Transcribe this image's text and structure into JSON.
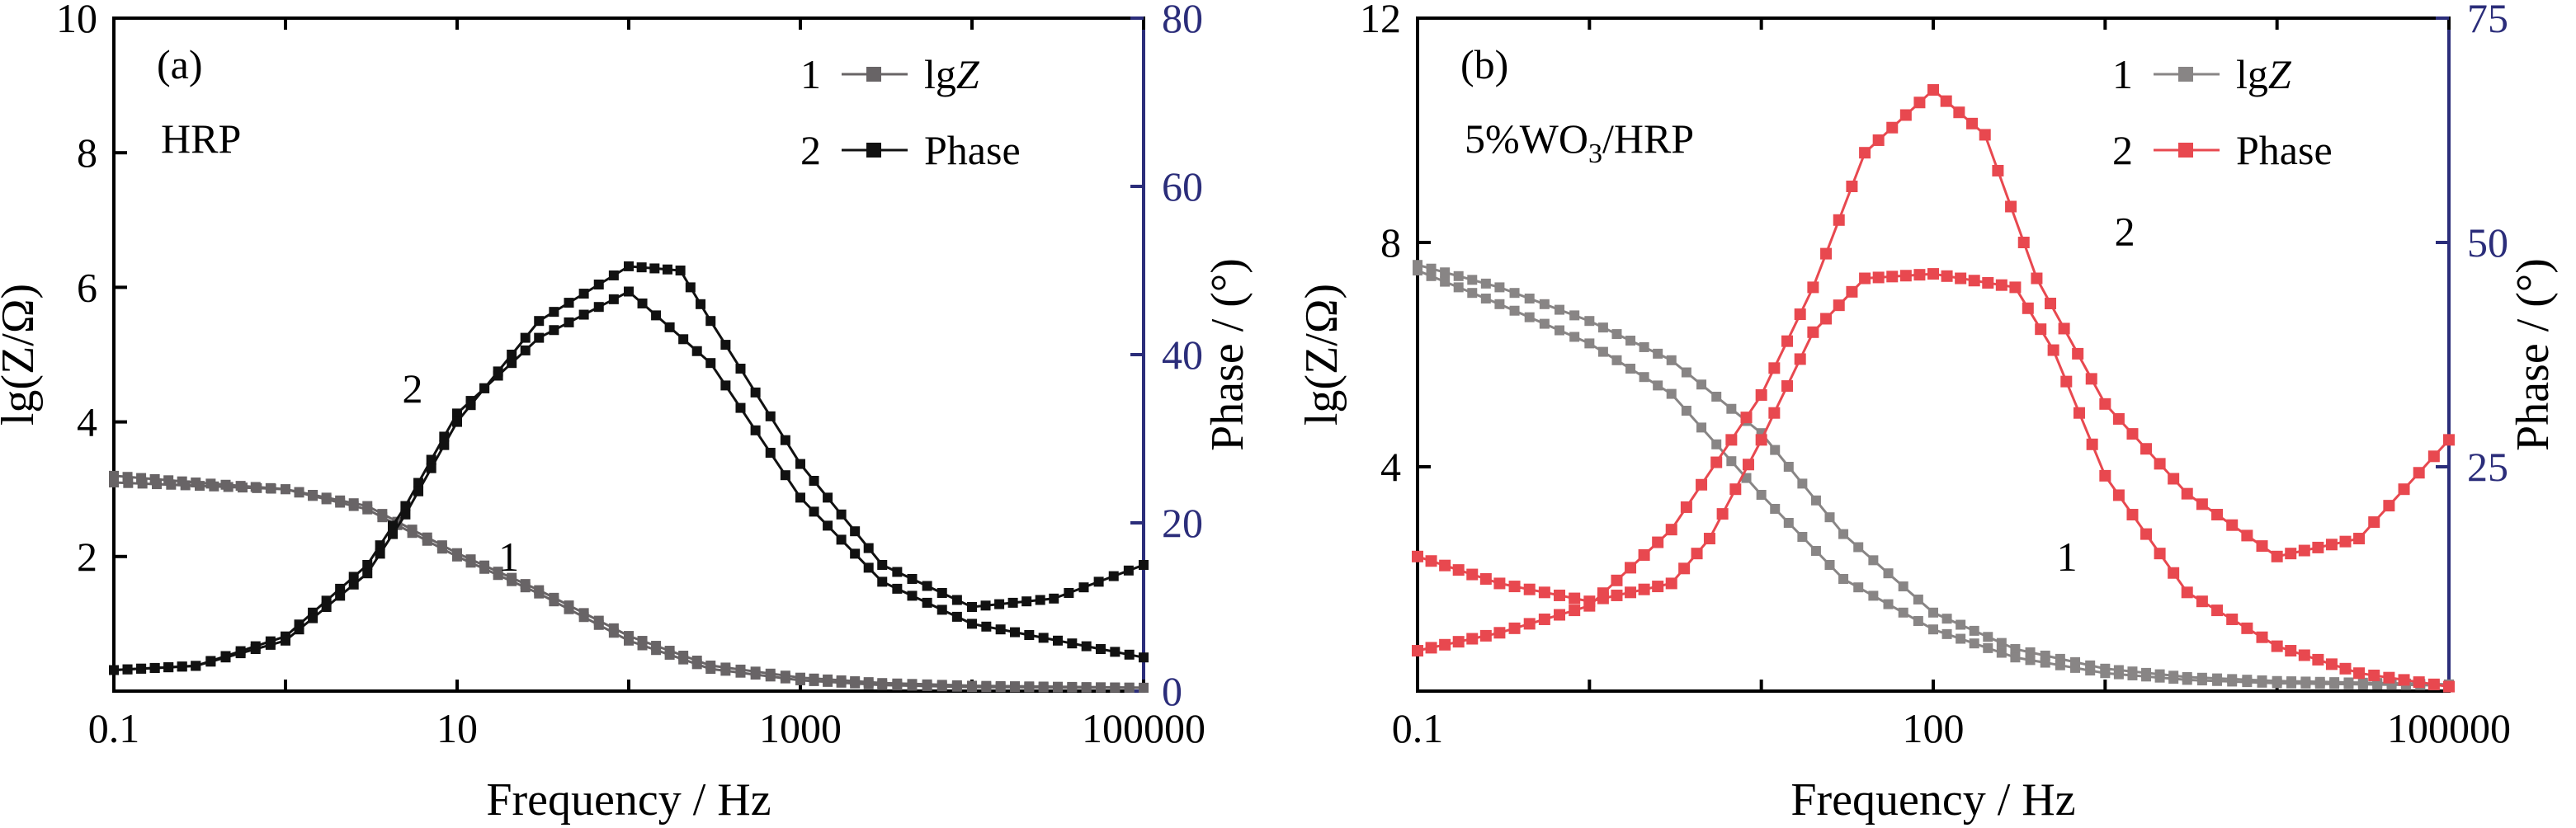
{
  "chart_data": [
    {
      "panel": "a",
      "type": "line",
      "panel_label": "(a)",
      "sample_label": "HRP",
      "xlabel": "Frequency / Hz",
      "ylabel": "lg(Z/Ω)",
      "ylabel_right": "Phase / (°)",
      "x_scale": "log",
      "xlim": [
        0.1,
        100000
      ],
      "ylim": [
        0,
        10
      ],
      "ylim_right": [
        0,
        80
      ],
      "x_ticks": [
        "0.1",
        "10",
        "1000",
        "100000"
      ],
      "y_ticks": [
        "2",
        "4",
        "6",
        "8",
        "10"
      ],
      "y_ticks_right": [
        "0",
        "20",
        "40",
        "60",
        "80"
      ],
      "legend_position": "top-right",
      "legend": [
        {
          "number": "1",
          "name": "lg",
          "name_italic": "Z"
        },
        {
          "number": "2",
          "name": "Phase",
          "name_italic": ""
        }
      ],
      "curve_labels": [
        {
          "text": "1",
          "x": 20,
          "y": 2.0
        },
        {
          "text": "2",
          "x": 5.5,
          "y": 4.5
        }
      ],
      "series": [
        {
          "name": "lgZ",
          "axis": "left",
          "color": "#686466",
          "x": [
            0.1,
            1,
            3,
            10,
            30,
            100,
            300,
            1000,
            3000,
            10000,
            100000
          ],
          "y": [
            3.1,
            3.0,
            2.7,
            2.0,
            1.45,
            0.75,
            0.33,
            0.16,
            0.09,
            0.06,
            0.05
          ]
        },
        {
          "name": "lgZ",
          "axis": "left",
          "color": "#686466",
          "x": [
            0.1,
            0.3,
            1,
            3,
            10,
            30,
            100,
            300,
            1000,
            3000,
            10000,
            100000
          ],
          "y": [
            3.2,
            3.1,
            3.0,
            2.75,
            2.05,
            1.5,
            0.82,
            0.38,
            0.2,
            0.12,
            0.08,
            0.05
          ]
        },
        {
          "name": "Phase",
          "axis": "right",
          "color": "#111111",
          "x": [
            0.1,
            0.3,
            1,
            3,
            5,
            10,
            30,
            100,
            300,
            1000,
            3000,
            10000,
            100000
          ],
          "y": [
            2.5,
            3,
            6.5,
            15,
            22,
            33,
            42,
            47.5,
            39,
            23,
            13,
            8,
            4
          ]
        },
        {
          "name": "Phase",
          "axis": "right",
          "color": "#111111",
          "x": [
            0.1,
            0.3,
            1,
            3,
            5,
            10,
            30,
            100,
            200,
            300,
            1000,
            3000,
            10000,
            30000,
            100000
          ],
          "y": [
            2.5,
            3,
            6,
            14,
            21,
            32,
            44,
            50.5,
            50,
            44,
            27,
            15,
            10,
            11,
            15
          ]
        }
      ]
    },
    {
      "panel": "b",
      "type": "line",
      "panel_label": "(b)",
      "sample_label": "5%WO3/HRP",
      "xlabel": "Frequency / Hz",
      "ylabel": "lg(Z/Ω)",
      "ylabel_right": "Phase / (°)",
      "x_scale": "log",
      "xlim": [
        0.1,
        100000
      ],
      "ylim": [
        0,
        12
      ],
      "ylim_right": [
        0,
        75
      ],
      "x_ticks": [
        "0.1",
        "100",
        "100000"
      ],
      "y_ticks": [
        "4",
        "8",
        "12"
      ],
      "y_ticks_right": [
        "25",
        "50",
        "75"
      ],
      "legend_position": "top-right",
      "legend": [
        {
          "number": "1",
          "name": "lg",
          "name_italic": "Z"
        },
        {
          "number": "2",
          "name": "Phase",
          "name_italic": ""
        }
      ],
      "curve_labels": [
        {
          "text": "1",
          "x": 600,
          "y": 2.4
        },
        {
          "text": "2",
          "x": 1300,
          "y": 8.2
        }
      ],
      "series": [
        {
          "name": "lgZ",
          "axis": "left",
          "color": "#888585",
          "x": [
            0.1,
            0.3,
            1,
            3,
            10,
            30,
            100,
            300,
            1000,
            3000,
            10000,
            100000
          ],
          "y": [
            7.6,
            7.2,
            6.6,
            5.9,
            4.6,
            2.8,
            1.4,
            0.75,
            0.4,
            0.25,
            0.18,
            0.12
          ]
        },
        {
          "name": "lgZ",
          "axis": "left",
          "color": "#888585",
          "x": [
            0.1,
            0.3,
            1,
            3,
            10,
            30,
            100,
            300,
            1000,
            3000,
            10000,
            100000
          ],
          "y": [
            7.5,
            6.9,
            6.2,
            5.3,
            3.5,
            2.0,
            1.1,
            0.6,
            0.32,
            0.2,
            0.14,
            0.1
          ]
        },
        {
          "name": "Phase",
          "axis": "right",
          "color": "#e8484f",
          "x": [
            0.1,
            0.3,
            1,
            3,
            10,
            20,
            40,
            100,
            200,
            400,
            1000,
            3000,
            10000,
            30000,
            100000
          ],
          "y": [
            4.5,
            6.5,
            9.5,
            18,
            33,
            45,
            60,
            67,
            62,
            46,
            32,
            22,
            15,
            17,
            28
          ]
        },
        {
          "name": "Phase",
          "axis": "right",
          "color": "#e8484f",
          "x": [
            0.1,
            0.3,
            1,
            3,
            5,
            10,
            20,
            40,
            100,
            300,
            500,
            1000,
            3000,
            10000,
            30000,
            100000
          ],
          "y": [
            15,
            12,
            10,
            12,
            17,
            28,
            40,
            46,
            46.5,
            45,
            38,
            24,
            11,
            5,
            2,
            0.5
          ]
        }
      ]
    }
  ]
}
